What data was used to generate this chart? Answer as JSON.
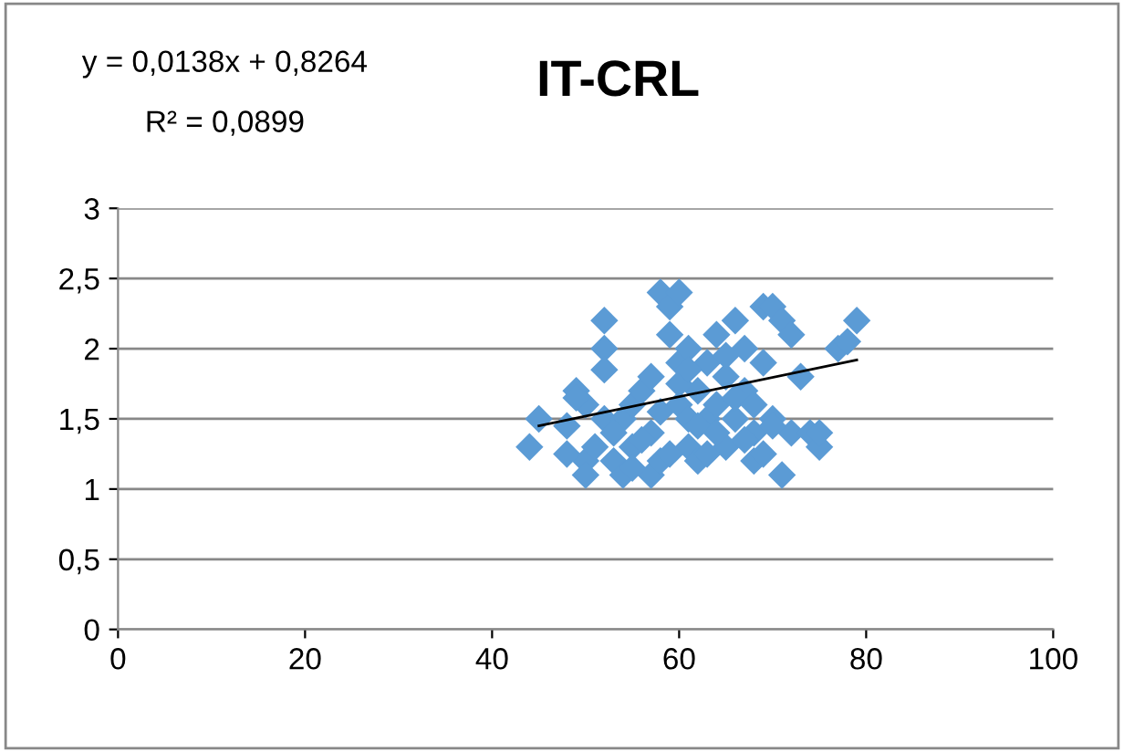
{
  "chart_data": {
    "type": "scatter",
    "title": "IT-CRL",
    "annotations": [
      "y = 0,0138x + 0,8264",
      "R² = 0,0899"
    ],
    "series": [
      {
        "color": "#5b9bd5",
        "marker": "diamond",
        "x": [
          44,
          45,
          48,
          49,
          50,
          50,
          50,
          51,
          52,
          52,
          52,
          52,
          53,
          54,
          54,
          55,
          55,
          56,
          57,
          57,
          58,
          58,
          59,
          59,
          60,
          60,
          60,
          61,
          61,
          61,
          62,
          62,
          63,
          63,
          64,
          64,
          65,
          65,
          66,
          66,
          67,
          67,
          68,
          68,
          69,
          69,
          70,
          70,
          71,
          71,
          72,
          72,
          73,
          74,
          75,
          75,
          77,
          78,
          79,
          56,
          58,
          60,
          62,
          64,
          66,
          68,
          53,
          55,
          59,
          63,
          48,
          49,
          57,
          61,
          65,
          67,
          69,
          70
        ],
        "values": [
          1.3,
          1.5,
          1.45,
          1.7,
          1.6,
          1.2,
          1.1,
          1.3,
          2.2,
          2.0,
          1.85,
          1.5,
          1.2,
          1.1,
          1.5,
          1.6,
          1.3,
          1.7,
          1.4,
          1.1,
          1.2,
          2.4,
          2.3,
          2.1,
          2.4,
          1.9,
          1.6,
          1.5,
          1.3,
          2.0,
          1.7,
          1.2,
          1.9,
          1.5,
          1.6,
          2.1,
          1.3,
          1.8,
          2.2,
          1.5,
          2.0,
          1.7,
          1.4,
          1.2,
          2.3,
          1.9,
          2.3,
          1.5,
          1.1,
          2.2,
          2.1,
          1.4,
          1.8,
          1.4,
          1.3,
          1.4,
          2.0,
          2.05,
          2.2,
          1.35,
          1.55,
          1.75,
          1.45,
          1.4,
          1.65,
          1.6,
          1.4,
          1.15,
          1.25,
          1.25,
          1.25,
          1.65,
          1.8,
          1.85,
          1.95,
          1.35,
          1.25,
          1.45
        ]
      },
      {
        "type": "line",
        "color": "#000000",
        "x": [
          45,
          79
        ],
        "values": [
          1.45,
          1.92
        ]
      }
    ],
    "xlim": [
      0,
      100
    ],
    "xticks": [
      0,
      20,
      40,
      60,
      80,
      100
    ],
    "ylim": [
      0,
      3
    ],
    "yticks": [
      0,
      {
        "value": 0.5,
        "label": "0,5"
      },
      1,
      {
        "value": 1.5,
        "label": "1,5"
      },
      2,
      {
        "value": 2.5,
        "label": "2,5"
      },
      3
    ],
    "grid": "y",
    "legend": false
  }
}
